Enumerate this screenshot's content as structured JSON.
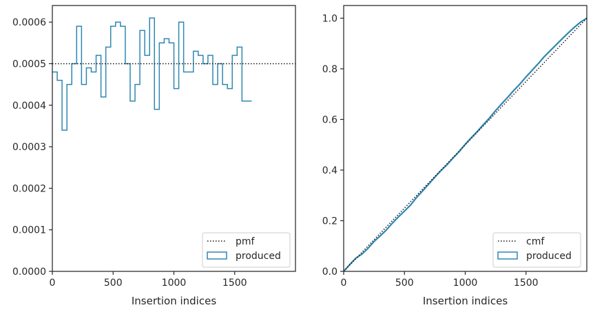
{
  "chart_data": [
    {
      "type": "line",
      "xlabel": "Insertion indices",
      "ylabel": "",
      "xlim": [
        0,
        2000
      ],
      "ylim": [
        0,
        0.00064
      ],
      "xticks": [
        0,
        500,
        1000,
        1500
      ],
      "xtick_labels": [
        "0",
        "500",
        "1000",
        "1500"
      ],
      "yticks": [
        0,
        0.0001,
        0.0002,
        0.0003,
        0.0004,
        0.0005,
        0.0006
      ],
      "ytick_labels": [
        "0.0000",
        "0.0001",
        "0.0002",
        "0.0003",
        "0.0004",
        "0.0005",
        "0.0006"
      ],
      "grid": false,
      "legend_position": "lower-right",
      "legend": [
        {
          "label": "pmf",
          "style": "dotted-line"
        },
        {
          "label": "produced",
          "style": "step-patch"
        }
      ],
      "reference": {
        "name": "pmf",
        "y": 0.0005,
        "color": "#111111"
      },
      "histogram": {
        "name": "produced",
        "color": "#2e86b1",
        "bin_width": 40,
        "values": [
          0.00048,
          0.00046,
          0.00034,
          0.00045,
          0.0005,
          0.00059,
          0.00045,
          0.00049,
          0.00048,
          0.00052,
          0.00042,
          0.00054,
          0.00059,
          0.0006,
          0.00059,
          0.0005,
          0.00041,
          0.00045,
          0.00058,
          0.00052,
          0.00061,
          0.00039,
          0.00055,
          0.00056,
          0.00055,
          0.00044,
          0.0006,
          0.00048,
          0.00048,
          0.00053,
          0.00052,
          0.0005,
          0.00052,
          0.00045,
          0.0005,
          0.00045,
          0.00044,
          0.00052,
          0.00054,
          0.00041,
          0.00041
        ]
      }
    },
    {
      "type": "line",
      "xlabel": "Insertion indices",
      "ylabel": "",
      "xlim": [
        0,
        2000
      ],
      "ylim": [
        0,
        1.05
      ],
      "xticks": [
        0,
        500,
        1000,
        1500
      ],
      "xtick_labels": [
        "0",
        "500",
        "1000",
        "1500"
      ],
      "yticks": [
        0,
        0.2,
        0.4,
        0.6,
        0.8,
        1.0
      ],
      "ytick_labels": [
        "0.0",
        "0.2",
        "0.4",
        "0.6",
        "0.8",
        "1.0"
      ],
      "grid": false,
      "legend_position": "lower-right",
      "legend": [
        {
          "label": "cmf",
          "style": "dotted-line"
        },
        {
          "label": "produced",
          "style": "step-patch"
        }
      ],
      "reference": {
        "name": "cmf",
        "x": [
          0,
          2000
        ],
        "y": [
          0,
          1.0
        ],
        "color": "#111111"
      },
      "series": [
        {
          "name": "produced",
          "color": "#2e86b1",
          "x": [
            0,
            50,
            100,
            150,
            200,
            250,
            300,
            350,
            400,
            450,
            500,
            550,
            600,
            650,
            700,
            750,
            800,
            850,
            900,
            950,
            1000,
            1050,
            1100,
            1150,
            1200,
            1250,
            1300,
            1350,
            1400,
            1450,
            1500,
            1550,
            1600,
            1650,
            1700,
            1750,
            1800,
            1850,
            1900,
            1950,
            2000
          ],
          "y": [
            0,
            0.027,
            0.052,
            0.068,
            0.091,
            0.118,
            0.14,
            0.163,
            0.19,
            0.215,
            0.238,
            0.262,
            0.292,
            0.318,
            0.345,
            0.372,
            0.398,
            0.421,
            0.448,
            0.473,
            0.502,
            0.528,
            0.553,
            0.58,
            0.606,
            0.635,
            0.662,
            0.688,
            0.715,
            0.74,
            0.768,
            0.794,
            0.82,
            0.848,
            0.872,
            0.896,
            0.92,
            0.943,
            0.965,
            0.985,
            1.0
          ]
        }
      ]
    }
  ]
}
